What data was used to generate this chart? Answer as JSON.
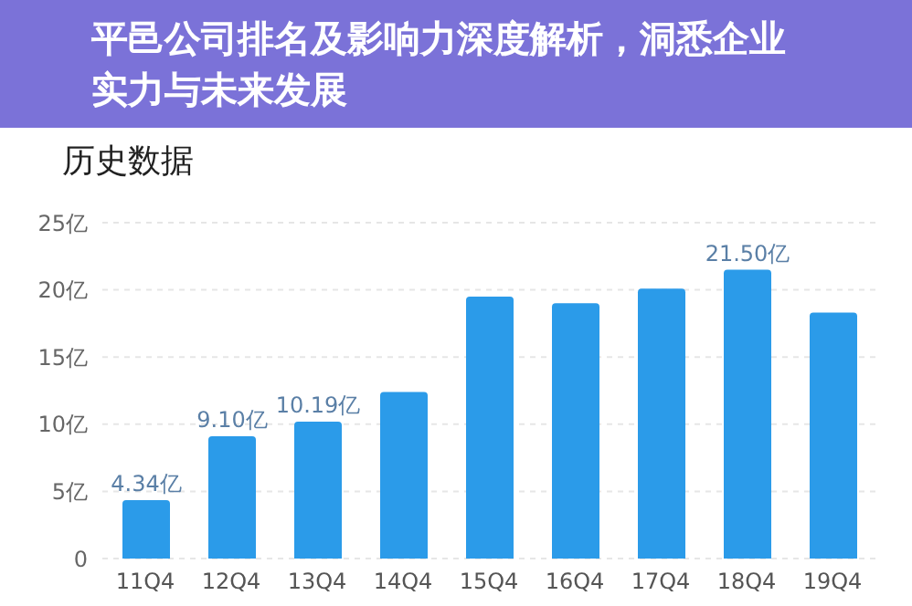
{
  "chart_data": {
    "type": "bar",
    "title": "历史数据",
    "subtitle": "平邑公司排名及影响力深度解析，洞悉企业实力与未来发展",
    "categories": [
      "11Q4",
      "12Q4",
      "13Q4",
      "14Q4",
      "15Q4",
      "16Q4",
      "17Q4",
      "18Q4",
      "19Q4"
    ],
    "values": [
      4.34,
      9.1,
      10.19,
      12.4,
      19.5,
      19.0,
      20.1,
      21.5,
      18.3
    ],
    "value_labels": [
      "4.34亿",
      "9.10亿",
      "10.19亿",
      null,
      null,
      null,
      null,
      "21.50亿",
      null
    ],
    "color": "#2b9be9",
    "ylim": [
      0,
      25
    ],
    "yticks": [
      0,
      {
        "value": 5,
        "label": "5亿"
      },
      {
        "value": 10,
        "label": "10亿"
      },
      {
        "value": 15,
        "label": "15亿"
      },
      {
        "value": 20,
        "label": "20亿"
      },
      {
        "value": 25,
        "label": "25亿"
      }
    ],
    "grid": "y",
    "legend": false
  }
}
